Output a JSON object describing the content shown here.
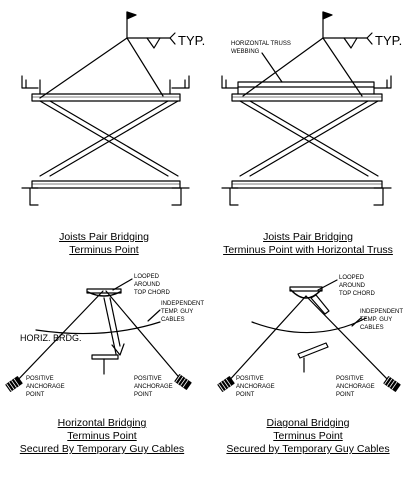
{
  "panels": [
    {
      "caption": [
        "Joists Pair Bridging",
        "Terminus Point"
      ],
      "labels": {
        "typ": "TYP."
      }
    },
    {
      "caption": [
        "Joists Pair Bridging",
        "Terminus Point with Horizontal Truss"
      ],
      "labels": {
        "typ": "TYP.",
        "truss": [
          "HORIZONTAL TRUSS",
          "WEBBING"
        ]
      }
    },
    {
      "caption": [
        "Horizontal Bridging",
        "Terminus Point",
        "Secured By Temporary Guy Cables"
      ],
      "labels": {
        "looped": [
          "LOOPED",
          "AROUND",
          "TOP CHORD"
        ],
        "cables": [
          "INDEPENDENT",
          "TEMP. GUY",
          "CABLES"
        ],
        "horiz": "HORIZ. BRDG.",
        "anchor_left": [
          "POSITIVE",
          "ANCHORAGE",
          "POINT"
        ],
        "anchor_right": [
          "POSITIVE",
          "ANCHORAGE",
          "POINT"
        ]
      }
    },
    {
      "caption": [
        "Diagonal Bridging",
        "Terminus Point",
        "Secured by Temporary Guy Cables"
      ],
      "labels": {
        "looped": [
          "LOOPED",
          "AROUND",
          "TOP CHORD"
        ],
        "cables": [
          "INDEPENDENT",
          "TEMP. GUY",
          "CABLES"
        ],
        "anchor_left": [
          "POSITIVE",
          "ANCHORAGE",
          "POINT"
        ],
        "anchor_right": [
          "POSITIVE",
          "ANCHORAGE",
          "POINT"
        ]
      }
    }
  ]
}
